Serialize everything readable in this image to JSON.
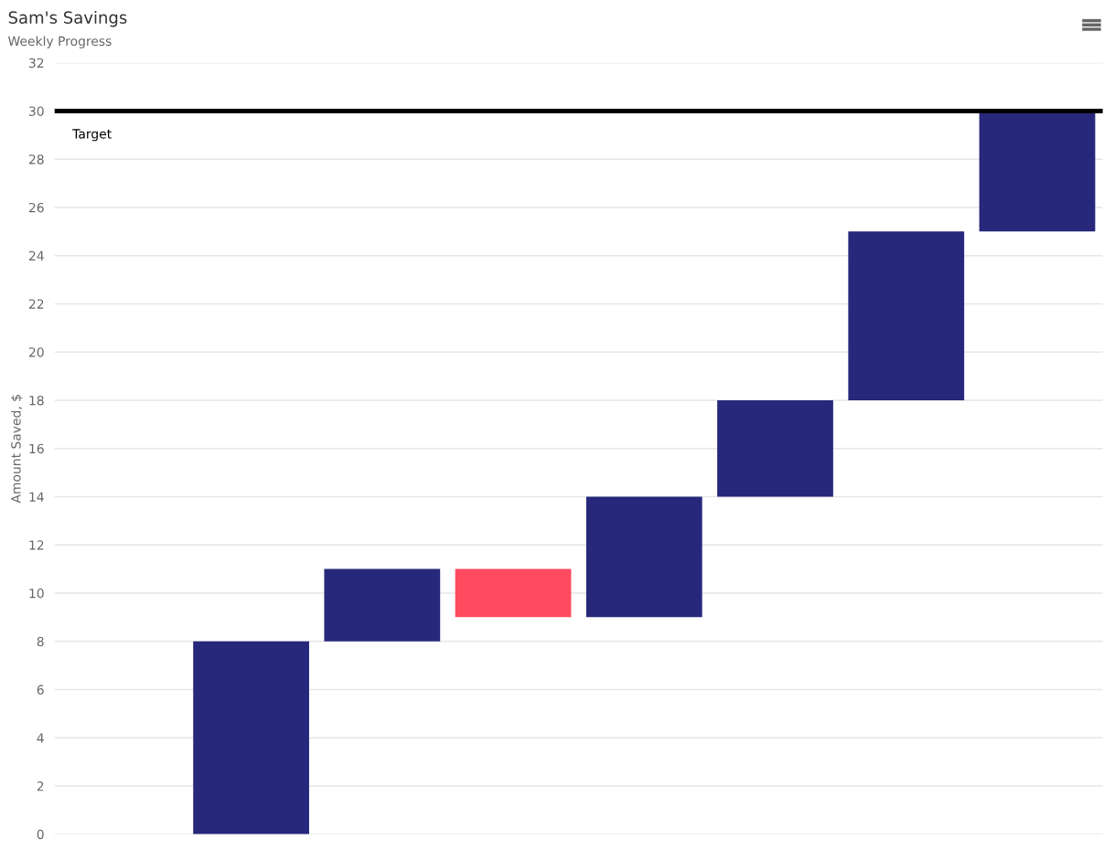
{
  "chart_data": {
    "type": "bar",
    "title": "Sam's Savings",
    "subtitle": "Weekly Progress",
    "ylabel": "Amount Saved, $",
    "categories": [
      null,
      null,
      null,
      null,
      null,
      null,
      null,
      null
    ],
    "values": [
      null,
      8,
      3,
      -2,
      5,
      4,
      7,
      5
    ],
    "base": [
      null,
      0,
      8,
      11,
      9,
      14,
      18,
      25
    ],
    "colors": [
      "#27277c",
      "#27277c",
      "#27277c",
      "#ff4a5f",
      "#27277c",
      "#27277c",
      "#27277c",
      "#27277c"
    ],
    "ylim": [
      0,
      32
    ],
    "yticks": [
      0,
      2,
      4,
      6,
      8,
      10,
      12,
      14,
      16,
      18,
      20,
      22,
      24,
      26,
      28,
      30,
      32
    ],
    "ref_lines": [
      {
        "axis": "y",
        "value": 30,
        "label": "Target",
        "color": "#000000"
      }
    ],
    "grid": "y"
  }
}
